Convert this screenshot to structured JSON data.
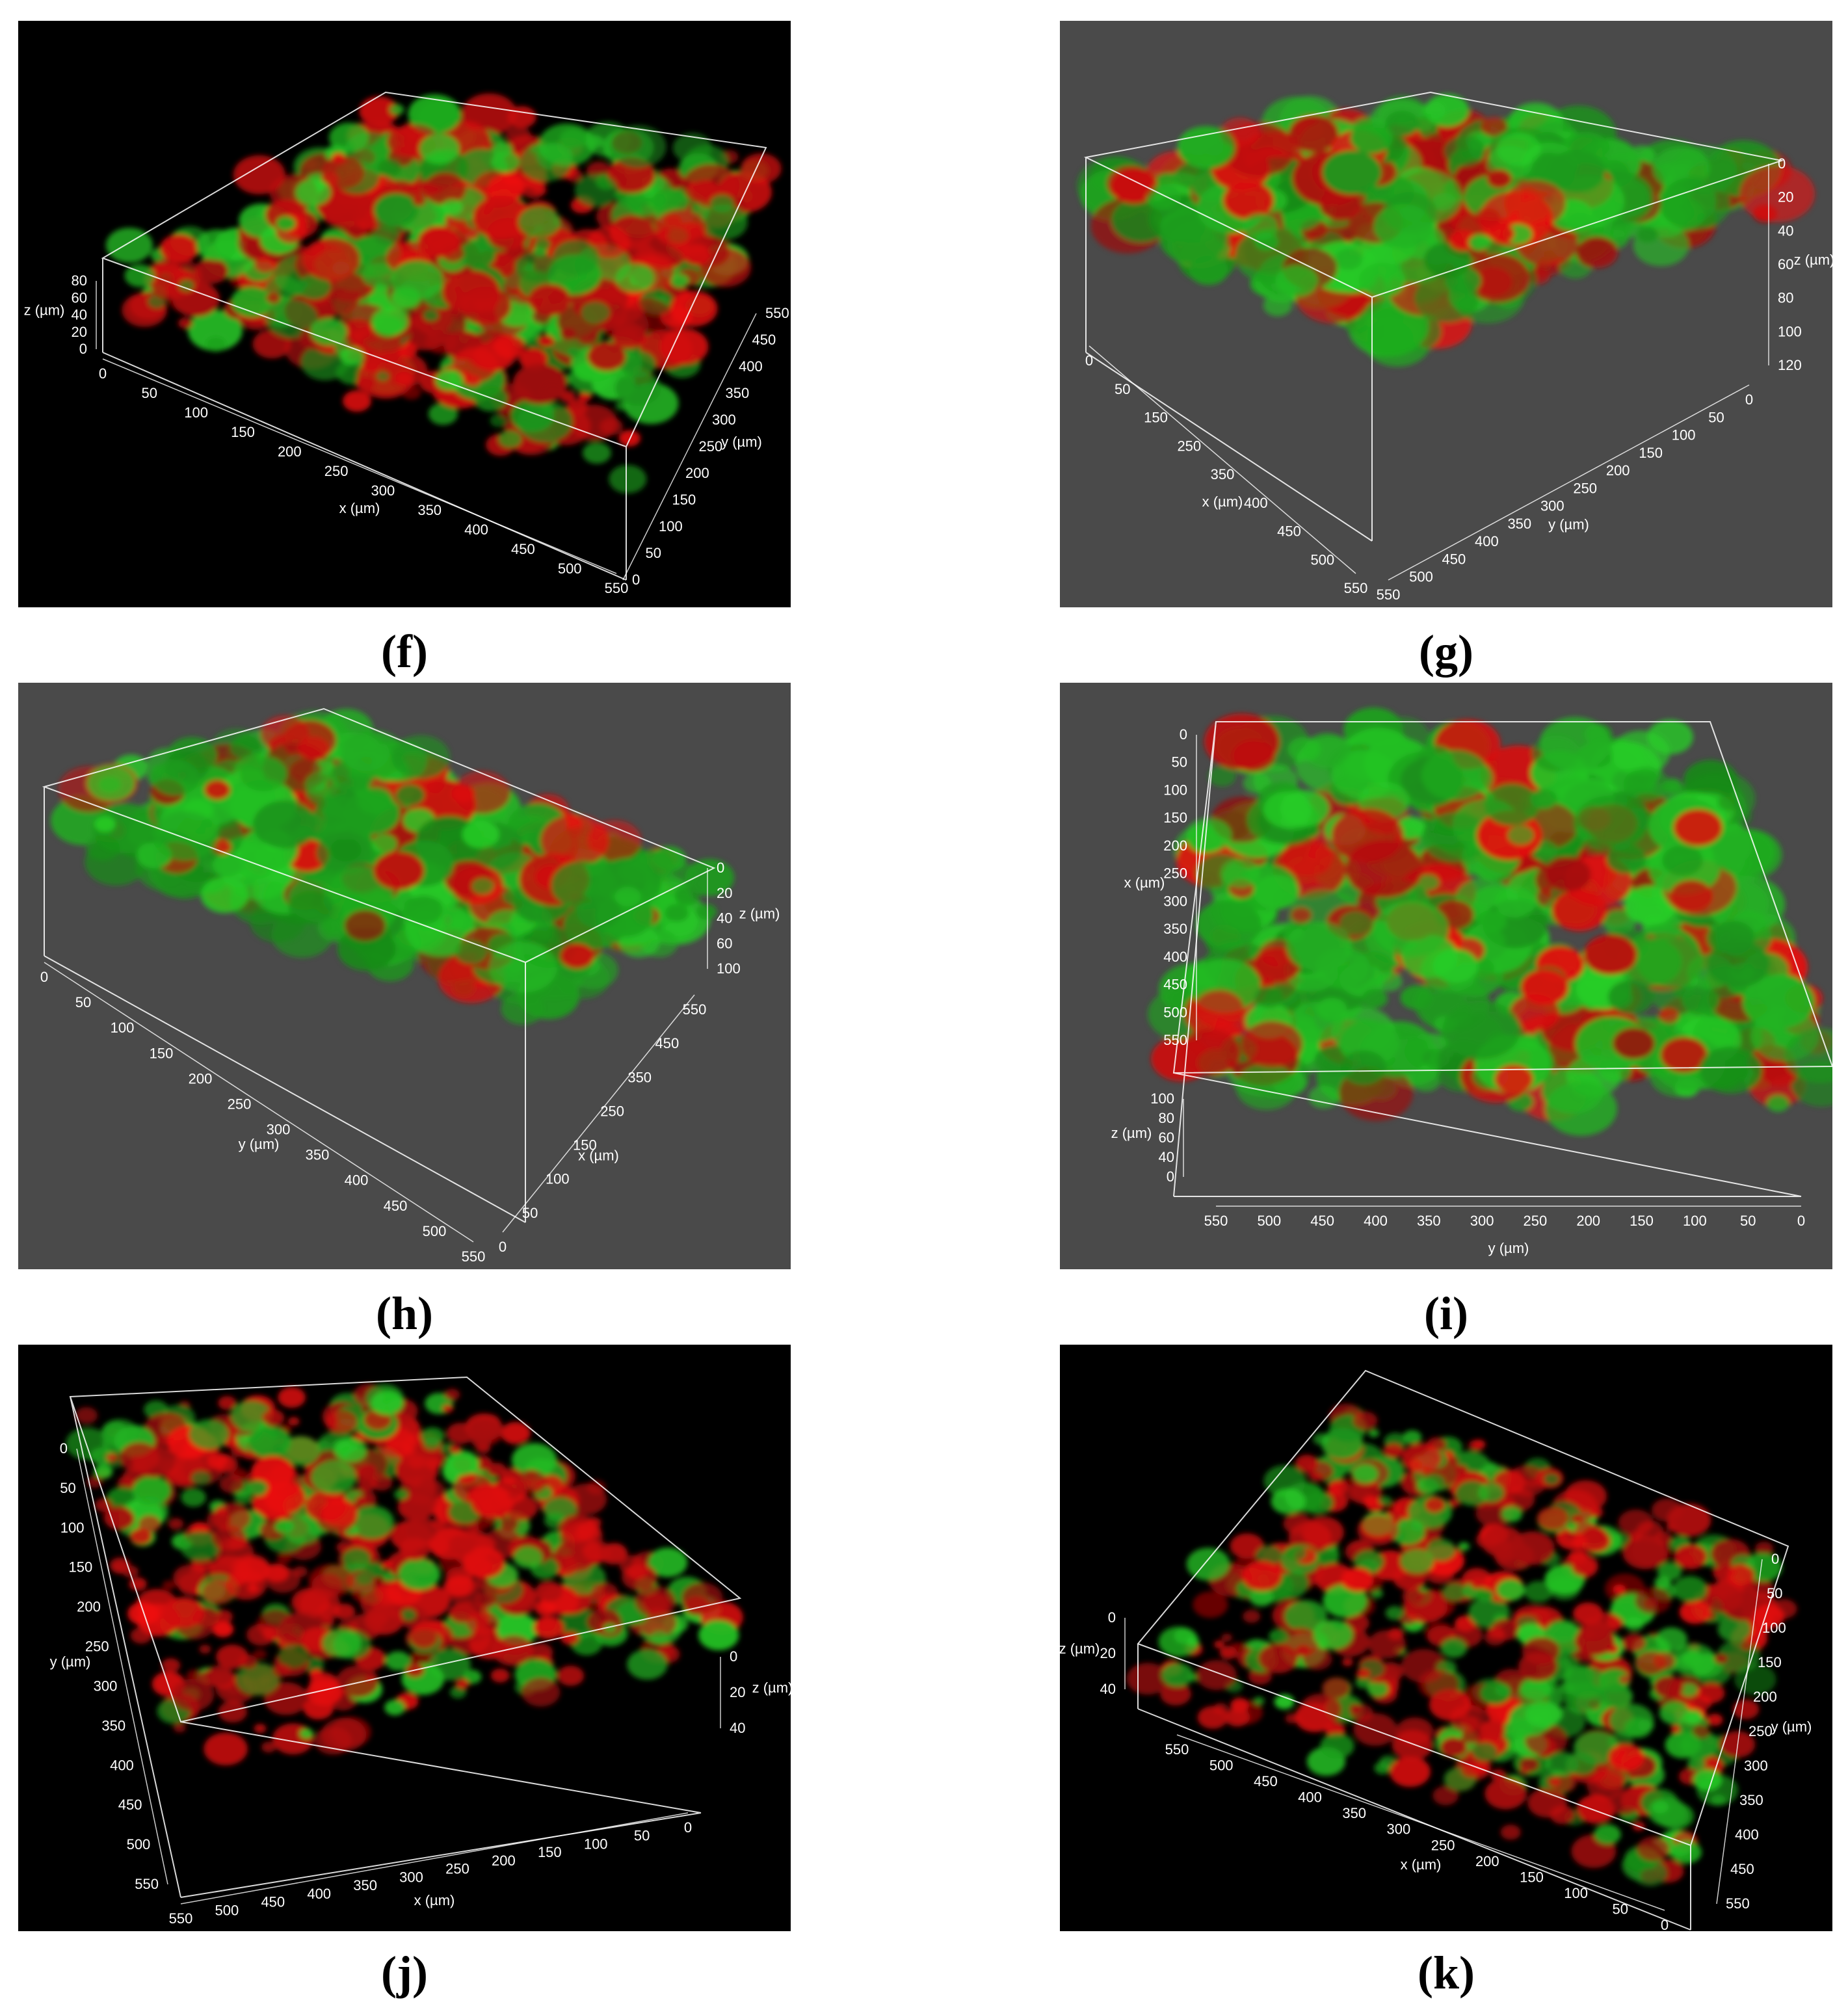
{
  "colors": {
    "black_bg": "#000000",
    "gray_bg": "#4a4a4a",
    "green": "#38c038",
    "red": "#c01010",
    "box_line": "#ffffff"
  },
  "panels": [
    {
      "id": "f",
      "caption": "(f)",
      "bg": "black",
      "z_label": "z (µm)",
      "z_ticks": [
        "80",
        "60",
        "40",
        "20",
        "0"
      ],
      "x_label": "x (µm)",
      "x_ticks": [
        "0",
        "50",
        "100",
        "150",
        "200",
        "250",
        "300",
        "350",
        "400",
        "450",
        "500",
        "550"
      ],
      "y_label": "y (µm)",
      "y_ticks": [
        "0",
        "50",
        "100",
        "150",
        "200",
        "250",
        "300",
        "350",
        "400",
        "450",
        "550"
      ]
    },
    {
      "id": "g",
      "caption": "(g)",
      "bg": "gray",
      "z_label": "z (µm)",
      "z_ticks": [
        "0",
        "20",
        "40",
        "60",
        "80",
        "100",
        "120"
      ],
      "x_label": "x (µm)",
      "x_ticks": [
        "0",
        "50",
        "150",
        "250",
        "350",
        "400",
        "450",
        "500",
        "550"
      ],
      "y_label": "y (µm)",
      "y_ticks": [
        "550",
        "500",
        "450",
        "400",
        "350",
        "300",
        "250",
        "200",
        "150",
        "100",
        "50",
        "0"
      ]
    },
    {
      "id": "h",
      "caption": "(h)",
      "bg": "gray",
      "z_label": "z (µm)",
      "z_ticks": [
        "0",
        "20",
        "40",
        "60",
        "100"
      ],
      "y_label": "y (µm)",
      "y_ticks": [
        "0",
        "50",
        "100",
        "150",
        "200",
        "250",
        "300",
        "350",
        "400",
        "450",
        "500",
        "550"
      ],
      "x_label": "x (µm)",
      "x_ticks": [
        "0",
        "50",
        "100",
        "150",
        "250",
        "350",
        "450",
        "550"
      ]
    },
    {
      "id": "i",
      "caption": "(i)",
      "bg": "gray",
      "x_label": "x (µm)",
      "x_ticks": [
        "550",
        "500",
        "450",
        "400",
        "350",
        "300",
        "250",
        "200",
        "150",
        "100",
        "50",
        "0"
      ],
      "z_label": "z (µm)",
      "z_ticks": [
        "100",
        "80",
        "60",
        "40",
        "0"
      ],
      "y_label": "y (µm)",
      "y_ticks": [
        "550",
        "500",
        "450",
        "400",
        "350",
        "300",
        "250",
        "200",
        "150",
        "100",
        "50",
        "0"
      ]
    },
    {
      "id": "j",
      "caption": "(j)",
      "bg": "black",
      "y_label": "y (µm)",
      "y_ticks": [
        "550",
        "500",
        "450",
        "400",
        "350",
        "300",
        "250",
        "200",
        "150",
        "100",
        "50",
        "0"
      ],
      "x_label": "x (µm)",
      "x_ticks": [
        "550",
        "500",
        "450",
        "400",
        "350",
        "300",
        "250",
        "200",
        "150",
        "100",
        "50",
        "0"
      ],
      "z_label": "z (µm)",
      "z_ticks": [
        "0",
        "20",
        "40"
      ]
    },
    {
      "id": "k",
      "caption": "(k)",
      "bg": "black",
      "z_label": "z (µm)",
      "z_ticks": [
        "0",
        "20",
        "40"
      ],
      "x_label": "x (µm)",
      "x_ticks": [
        "550",
        "500",
        "450",
        "400",
        "350",
        "300",
        "250",
        "200",
        "150",
        "100",
        "50",
        "0"
      ],
      "y_label": "y (µm)",
      "y_ticks": [
        "550",
        "450",
        "400",
        "350",
        "300",
        "250",
        "200",
        "150",
        "100",
        "50",
        "0"
      ]
    }
  ]
}
